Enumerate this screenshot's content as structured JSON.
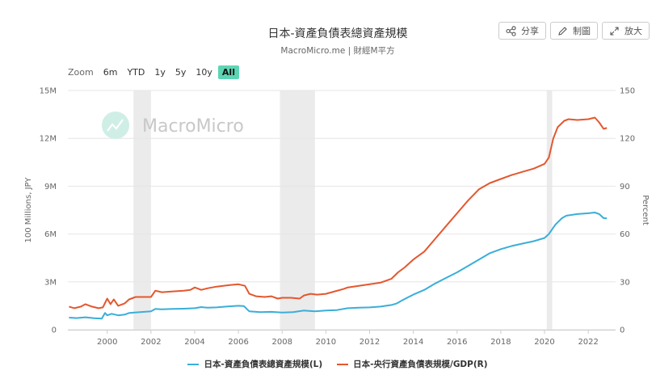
{
  "header": {
    "title": "日本-資產負債表總資產規模",
    "subtitle": "MacroMicro.me | 財經M平方"
  },
  "toolbar": {
    "share_label": "分享",
    "draw_label": "制圖",
    "expand_label": "放大",
    "share_icon": "share-icon",
    "draw_icon": "pencil-icon",
    "expand_icon": "expand-icon"
  },
  "zoom": {
    "label": "Zoom",
    "options": [
      "6m",
      "YTD",
      "1y",
      "5y",
      "10y",
      "All"
    ],
    "selected": "All"
  },
  "watermark": {
    "text": "MacroMicro"
  },
  "colors": {
    "left_series": "#3aaed8",
    "right_series": "#e4572e",
    "shading": "#ebebeb",
    "grid": "#e6e6e6",
    "accent": "#5dd5b4"
  },
  "chart_data": {
    "type": "line",
    "xlabel": "",
    "x_ticks": [
      "2000",
      "2002",
      "2004",
      "2006",
      "2008",
      "2010",
      "2012",
      "2014",
      "2016",
      "2018",
      "2020",
      "2022"
    ],
    "y_left": {
      "label": "100 Millions, JPY",
      "ticks": [
        "0",
        "3M",
        "6M",
        "9M",
        "12M",
        "15M"
      ],
      "range": [
        0,
        15000000
      ]
    },
    "y_right": {
      "label": "Percent",
      "ticks": [
        "0",
        "30",
        "60",
        "90",
        "120",
        "150"
      ],
      "range": [
        0,
        150
      ]
    },
    "shaded_periods": [
      [
        2001.2,
        2002.0
      ],
      [
        2007.9,
        2009.5
      ],
      [
        2020.1,
        2020.35
      ]
    ],
    "grid": true,
    "legend_position": "bottom",
    "series": [
      {
        "name": "日本-資產負債表總資產規模(L)",
        "axis": "left",
        "points": [
          [
            1998.25,
            760000
          ],
          [
            1998.6,
            730000
          ],
          [
            1999.0,
            780000
          ],
          [
            1999.4,
            720000
          ],
          [
            1999.75,
            700000
          ],
          [
            1999.9,
            1050000
          ],
          [
            2000.0,
            900000
          ],
          [
            2000.2,
            1000000
          ],
          [
            2000.5,
            900000
          ],
          [
            2000.8,
            950000
          ],
          [
            2001.0,
            1050000
          ],
          [
            2001.5,
            1100000
          ],
          [
            2002.0,
            1150000
          ],
          [
            2002.2,
            1300000
          ],
          [
            2002.5,
            1280000
          ],
          [
            2003.0,
            1300000
          ],
          [
            2003.5,
            1320000
          ],
          [
            2004.0,
            1350000
          ],
          [
            2004.3,
            1420000
          ],
          [
            2004.6,
            1380000
          ],
          [
            2005.0,
            1400000
          ],
          [
            2005.5,
            1460000
          ],
          [
            2006.0,
            1500000
          ],
          [
            2006.25,
            1480000
          ],
          [
            2006.5,
            1150000
          ],
          [
            2007.0,
            1100000
          ],
          [
            2007.5,
            1120000
          ],
          [
            2008.0,
            1080000
          ],
          [
            2008.5,
            1100000
          ],
          [
            2009.0,
            1200000
          ],
          [
            2009.5,
            1150000
          ],
          [
            2010.0,
            1200000
          ],
          [
            2010.5,
            1230000
          ],
          [
            2011.0,
            1350000
          ],
          [
            2011.5,
            1380000
          ],
          [
            2012.0,
            1400000
          ],
          [
            2012.5,
            1450000
          ],
          [
            2013.0,
            1550000
          ],
          [
            2013.25,
            1650000
          ],
          [
            2013.5,
            1850000
          ],
          [
            2014.0,
            2200000
          ],
          [
            2014.5,
            2500000
          ],
          [
            2015.0,
            2900000
          ],
          [
            2015.5,
            3250000
          ],
          [
            2016.0,
            3600000
          ],
          [
            2016.5,
            4000000
          ],
          [
            2017.0,
            4400000
          ],
          [
            2017.5,
            4800000
          ],
          [
            2018.0,
            5050000
          ],
          [
            2018.5,
            5250000
          ],
          [
            2019.0,
            5400000
          ],
          [
            2019.5,
            5550000
          ],
          [
            2020.0,
            5750000
          ],
          [
            2020.2,
            6000000
          ],
          [
            2020.5,
            6600000
          ],
          [
            2020.8,
            7000000
          ],
          [
            2021.0,
            7150000
          ],
          [
            2021.5,
            7250000
          ],
          [
            2022.0,
            7300000
          ],
          [
            2022.3,
            7350000
          ],
          [
            2022.5,
            7250000
          ],
          [
            2022.7,
            7000000
          ],
          [
            2022.85,
            6980000
          ]
        ]
      },
      {
        "name": "日本-央行資產負債表規模/GDP(R)",
        "axis": "right",
        "points": [
          [
            1998.25,
            14.5
          ],
          [
            1998.5,
            13.5
          ],
          [
            1998.8,
            14.5
          ],
          [
            1999.0,
            16
          ],
          [
            1999.3,
            14.5
          ],
          [
            1999.6,
            13.5
          ],
          [
            1999.8,
            14
          ],
          [
            2000.0,
            19.5
          ],
          [
            2000.15,
            16
          ],
          [
            2000.3,
            19
          ],
          [
            2000.5,
            15
          ],
          [
            2000.8,
            16.5
          ],
          [
            2001.0,
            19
          ],
          [
            2001.3,
            20.5
          ],
          [
            2001.6,
            20.5
          ],
          [
            2002.0,
            20.5
          ],
          [
            2002.2,
            24.5
          ],
          [
            2002.5,
            23.5
          ],
          [
            2003.0,
            24
          ],
          [
            2003.5,
            24.5
          ],
          [
            2003.8,
            25
          ],
          [
            2004.0,
            26.5
          ],
          [
            2004.3,
            25
          ],
          [
            2004.6,
            26
          ],
          [
            2005.0,
            27
          ],
          [
            2005.3,
            27.5
          ],
          [
            2005.6,
            28
          ],
          [
            2006.0,
            28.5
          ],
          [
            2006.3,
            27.5
          ],
          [
            2006.5,
            22.5
          ],
          [
            2006.8,
            21
          ],
          [
            2007.2,
            20.5
          ],
          [
            2007.5,
            21
          ],
          [
            2007.8,
            19.5
          ],
          [
            2008.0,
            20
          ],
          [
            2008.4,
            20
          ],
          [
            2008.8,
            19.5
          ],
          [
            2009.0,
            21.5
          ],
          [
            2009.3,
            22.5
          ],
          [
            2009.6,
            22
          ],
          [
            2010.0,
            22.5
          ],
          [
            2010.4,
            24
          ],
          [
            2010.8,
            25.5
          ],
          [
            2011.0,
            26.5
          ],
          [
            2011.5,
            27.5
          ],
          [
            2012.0,
            28.5
          ],
          [
            2012.5,
            29.5
          ],
          [
            2013.0,
            32
          ],
          [
            2013.3,
            36
          ],
          [
            2013.6,
            39
          ],
          [
            2014.0,
            44
          ],
          [
            2014.5,
            49
          ],
          [
            2015.0,
            57
          ],
          [
            2015.5,
            65
          ],
          [
            2016.0,
            73
          ],
          [
            2016.5,
            81
          ],
          [
            2017.0,
            88
          ],
          [
            2017.5,
            92
          ],
          [
            2018.0,
            94.5
          ],
          [
            2018.5,
            97
          ],
          [
            2019.0,
            99
          ],
          [
            2019.5,
            101
          ],
          [
            2020.0,
            104
          ],
          [
            2020.2,
            108
          ],
          [
            2020.4,
            120
          ],
          [
            2020.6,
            127
          ],
          [
            2020.9,
            131
          ],
          [
            2021.1,
            132
          ],
          [
            2021.5,
            131.5
          ],
          [
            2022.0,
            132
          ],
          [
            2022.3,
            133
          ],
          [
            2022.5,
            130
          ],
          [
            2022.7,
            126
          ],
          [
            2022.85,
            126.5
          ]
        ]
      }
    ]
  }
}
